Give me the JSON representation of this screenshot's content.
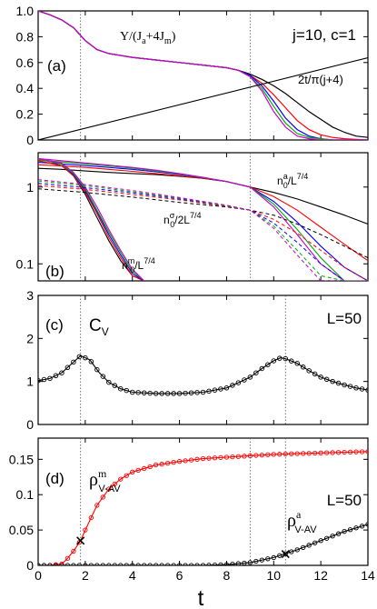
{
  "figure": {
    "params_label": "j=10, c=1",
    "x_axis_label": "t",
    "x_ticks": [
      0,
      2,
      4,
      6,
      8,
      10,
      12,
      14
    ],
    "vlines_t": [
      1.8,
      9.0,
      10.5
    ]
  },
  "chart_data": [
    {
      "panel": "(a)",
      "type": "line",
      "xlim": [
        0,
        14
      ],
      "ylim": [
        0,
        1
      ],
      "yticks": [
        0,
        0.2,
        0.4,
        0.6,
        0.8,
        1.0
      ],
      "ytick_labels": [
        "0",
        "0.2",
        "0.4",
        "0.6",
        "0.8",
        "1.0"
      ],
      "annotations": {
        "upsilon": "Υ/(J",
        "upsilon_sub_a": "a",
        "upsilon_mid": "+4J",
        "upsilon_sub_m": "m",
        "upsilon_end": ")",
        "line_label": "2t/π(j+4)"
      },
      "x": [
        0,
        0.5,
        1,
        1.5,
        2,
        2.5,
        3,
        4,
        5,
        6,
        7,
        8,
        8.5,
        9,
        9.5,
        10,
        10.5,
        11,
        11.5,
        12,
        12.5,
        13,
        13.5,
        14
      ],
      "series": [
        {
          "color": "#000000",
          "values": [
            1.0,
            0.97,
            0.93,
            0.87,
            0.77,
            0.7,
            0.67,
            0.64,
            0.62,
            0.6,
            0.58,
            0.56,
            0.54,
            0.51,
            0.47,
            0.42,
            0.36,
            0.29,
            0.22,
            0.16,
            0.1,
            0.06,
            0.03,
            0.02
          ]
        },
        {
          "color": "#ff0000",
          "values": [
            1.0,
            0.97,
            0.93,
            0.87,
            0.77,
            0.7,
            0.67,
            0.64,
            0.62,
            0.6,
            0.58,
            0.56,
            0.54,
            0.5,
            0.44,
            0.35,
            0.25,
            0.15,
            0.08,
            0.04,
            0.02,
            0.01,
            0.005,
            0.0
          ]
        },
        {
          "color": "#0000ff",
          "values": [
            1.0,
            0.97,
            0.93,
            0.87,
            0.77,
            0.7,
            0.67,
            0.64,
            0.62,
            0.6,
            0.58,
            0.56,
            0.54,
            0.5,
            0.42,
            0.3,
            0.17,
            0.08,
            0.03,
            0.01,
            0.0,
            0.0,
            0.0,
            0.0
          ]
        },
        {
          "color": "#00aa00",
          "values": [
            1.0,
            0.97,
            0.93,
            0.87,
            0.77,
            0.7,
            0.67,
            0.64,
            0.62,
            0.6,
            0.58,
            0.56,
            0.54,
            0.49,
            0.4,
            0.26,
            0.13,
            0.05,
            0.02,
            0.01,
            0.0,
            0.0,
            0.0,
            0.0
          ]
        },
        {
          "color": "#cc00cc",
          "values": [
            1.0,
            0.97,
            0.93,
            0.87,
            0.77,
            0.7,
            0.67,
            0.64,
            0.62,
            0.6,
            0.58,
            0.56,
            0.54,
            0.49,
            0.38,
            0.22,
            0.1,
            0.03,
            0.01,
            0.0,
            0.0,
            0.0,
            0.0,
            0.0
          ]
        }
      ],
      "line": {
        "color": "#000000",
        "x": [
          0,
          14
        ],
        "values": [
          0,
          0.637
        ]
      }
    },
    {
      "panel": "(b)",
      "type": "line",
      "yscale": "log",
      "xlim": [
        0,
        14
      ],
      "ylim": [
        0.06,
        2.8
      ],
      "yticks": [
        0.1,
        1
      ],
      "ytick_labels": [
        "0.1",
        "1"
      ],
      "annotations": {
        "na": "n",
        "na_sup": "a",
        "na_sub": "0",
        "na_end": "/L",
        "na_exp": "7/4",
        "ns": "n",
        "ns_sup": "σ",
        "ns_sub": "0",
        "ns_end": "/2L",
        "ns_exp": "7/4",
        "nm": "n",
        "nm_sup": "m",
        "nm_sub": "0",
        "nm_end": "/L",
        "nm_exp": "7/4"
      },
      "x_a": [
        0,
        1,
        2,
        3,
        4,
        5,
        6,
        7,
        8,
        9,
        10,
        11,
        12,
        13,
        14
      ],
      "series_a": [
        {
          "color": "#000000",
          "values": [
            1.75,
            1.7,
            1.62,
            1.55,
            1.5,
            1.45,
            1.38,
            1.3,
            1.18,
            1.0,
            0.85,
            0.7,
            0.55,
            0.43,
            0.33
          ]
        },
        {
          "color": "#ff0000",
          "values": [
            1.95,
            1.88,
            1.8,
            1.7,
            1.6,
            1.5,
            1.4,
            1.3,
            1.18,
            1.0,
            0.75,
            0.5,
            0.3,
            0.18,
            0.11
          ]
        },
        {
          "color": "#0000ff",
          "values": [
            2.1,
            2.0,
            1.9,
            1.8,
            1.7,
            1.58,
            1.45,
            1.32,
            1.18,
            1.0,
            0.65,
            0.35,
            0.17,
            0.09,
            0.06
          ]
        },
        {
          "color": "#00aa00",
          "values": [
            2.25,
            2.12,
            2.0,
            1.88,
            1.76,
            1.62,
            1.48,
            1.33,
            1.18,
            1.0,
            0.6,
            0.28,
            0.12,
            0.06,
            0.06
          ]
        },
        {
          "color": "#cc00cc",
          "values": [
            2.35,
            2.2,
            2.06,
            1.93,
            1.8,
            1.66,
            1.5,
            1.34,
            1.18,
            1.0,
            0.55,
            0.24,
            0.1,
            0.06,
            0.06
          ]
        }
      ],
      "x_m": [
        0,
        1,
        1.5,
        2,
        2.5,
        3,
        3.5,
        4,
        4.5
      ],
      "series_m": [
        {
          "color": "#000000",
          "values": [
            2.2,
            1.9,
            1.4,
            0.8,
            0.4,
            0.2,
            0.11,
            0.07,
            0.06
          ]
        },
        {
          "color": "#ff0000",
          "values": [
            2.2,
            1.9,
            1.4,
            0.85,
            0.45,
            0.22,
            0.12,
            0.07,
            0.06
          ]
        },
        {
          "color": "#0000ff",
          "values": [
            2.3,
            2.0,
            1.45,
            0.9,
            0.48,
            0.24,
            0.13,
            0.075,
            0.06
          ]
        },
        {
          "color": "#00aa00",
          "values": [
            2.3,
            2.0,
            1.5,
            0.95,
            0.5,
            0.26,
            0.14,
            0.08,
            0.06
          ]
        },
        {
          "color": "#cc00cc",
          "values": [
            2.35,
            2.05,
            1.55,
            1.0,
            0.55,
            0.28,
            0.15,
            0.085,
            0.06
          ]
        }
      ],
      "x_s": [
        0,
        2,
        4,
        6,
        8,
        9,
        10,
        11,
        12,
        13,
        14
      ],
      "series_s": [
        {
          "color": "#000000",
          "values": [
            0.95,
            0.85,
            0.74,
            0.63,
            0.55,
            0.5,
            0.43,
            0.33,
            0.24,
            0.17,
            0.12
          ]
        },
        {
          "color": "#ff0000",
          "values": [
            1.05,
            0.93,
            0.8,
            0.68,
            0.56,
            0.5,
            0.38,
            0.25,
            0.15,
            0.09,
            0.06
          ]
        },
        {
          "color": "#0000ff",
          "values": [
            1.12,
            0.98,
            0.84,
            0.7,
            0.57,
            0.5,
            0.34,
            0.19,
            0.1,
            0.06,
            0.06
          ]
        },
        {
          "color": "#00aa00",
          "values": [
            1.2,
            1.04,
            0.87,
            0.72,
            0.57,
            0.5,
            0.31,
            0.15,
            0.07,
            0.06,
            0.06
          ]
        },
        {
          "color": "#cc00cc",
          "values": [
            1.25,
            1.08,
            0.9,
            0.73,
            0.58,
            0.5,
            0.29,
            0.13,
            0.06,
            0.06,
            0.06
          ]
        }
      ]
    },
    {
      "panel": "(c)",
      "type": "line",
      "xlim": [
        0,
        14
      ],
      "ylim": [
        0,
        3
      ],
      "yticks": [
        0,
        1,
        2,
        3
      ],
      "ytick_labels": [
        "0",
        "1",
        "2",
        "3"
      ],
      "annotations": {
        "cv": "C",
        "cv_sub": "V",
        "size": "L=50"
      },
      "x": [
        0,
        0.5,
        1,
        1.5,
        1.8,
        2.2,
        2.6,
        3,
        3.5,
        4,
        5,
        6,
        7,
        8,
        8.5,
        9,
        9.5,
        10,
        10.3,
        10.5,
        11,
        11.5,
        12,
        12.5,
        13,
        13.5,
        14
      ],
      "series": [
        {
          "color": "#000000",
          "values": [
            1.02,
            1.07,
            1.2,
            1.45,
            1.6,
            1.5,
            1.2,
            0.98,
            0.83,
            0.75,
            0.72,
            0.72,
            0.75,
            0.85,
            0.97,
            1.1,
            1.3,
            1.48,
            1.55,
            1.53,
            1.42,
            1.25,
            1.1,
            1.0,
            0.92,
            0.85,
            0.8
          ]
        }
      ]
    },
    {
      "panel": "(d)",
      "type": "line",
      "xlim": [
        0,
        14
      ],
      "ylim": [
        0,
        0.18
      ],
      "yticks": [
        0,
        0.05,
        0.1,
        0.15
      ],
      "ytick_labels": [
        "0",
        "0.05",
        "0.1",
        "0.15"
      ],
      "annotations": {
        "rho_m": "ρ",
        "rho_m_sup": "m",
        "rho_m_sub": "V-AV",
        "rho_a": "ρ",
        "rho_a_sup": "a",
        "rho_a_sub": "V-AV",
        "size": "L=50"
      },
      "x": [
        0,
        0.5,
        1,
        1.2,
        1.5,
        1.8,
        2,
        2.5,
        3,
        3.5,
        4,
        5,
        6,
        7,
        8,
        9,
        10,
        11,
        12,
        13,
        14
      ],
      "series": [
        {
          "name": "m",
          "color": "#ff0000",
          "values": [
            0.0,
            0.0,
            0.002,
            0.008,
            0.02,
            0.035,
            0.05,
            0.085,
            0.108,
            0.122,
            0.132,
            0.142,
            0.147,
            0.151,
            0.153,
            0.155,
            0.157,
            0.158,
            0.159,
            0.16,
            0.161
          ]
        },
        {
          "name": "a",
          "color": "#000000",
          "values": [
            0.0,
            0.0,
            0.0,
            0.0,
            0.0,
            0.0,
            0.0,
            0.0,
            0.0,
            0.0,
            0.0,
            0.0,
            0.0,
            0.0,
            0.001,
            0.004,
            0.011,
            0.022,
            0.035,
            0.048,
            0.058
          ]
        }
      ],
      "markers": [
        {
          "x": 1.8,
          "y": 0.035
        },
        {
          "x": 10.5,
          "y": 0.016
        }
      ]
    }
  ]
}
